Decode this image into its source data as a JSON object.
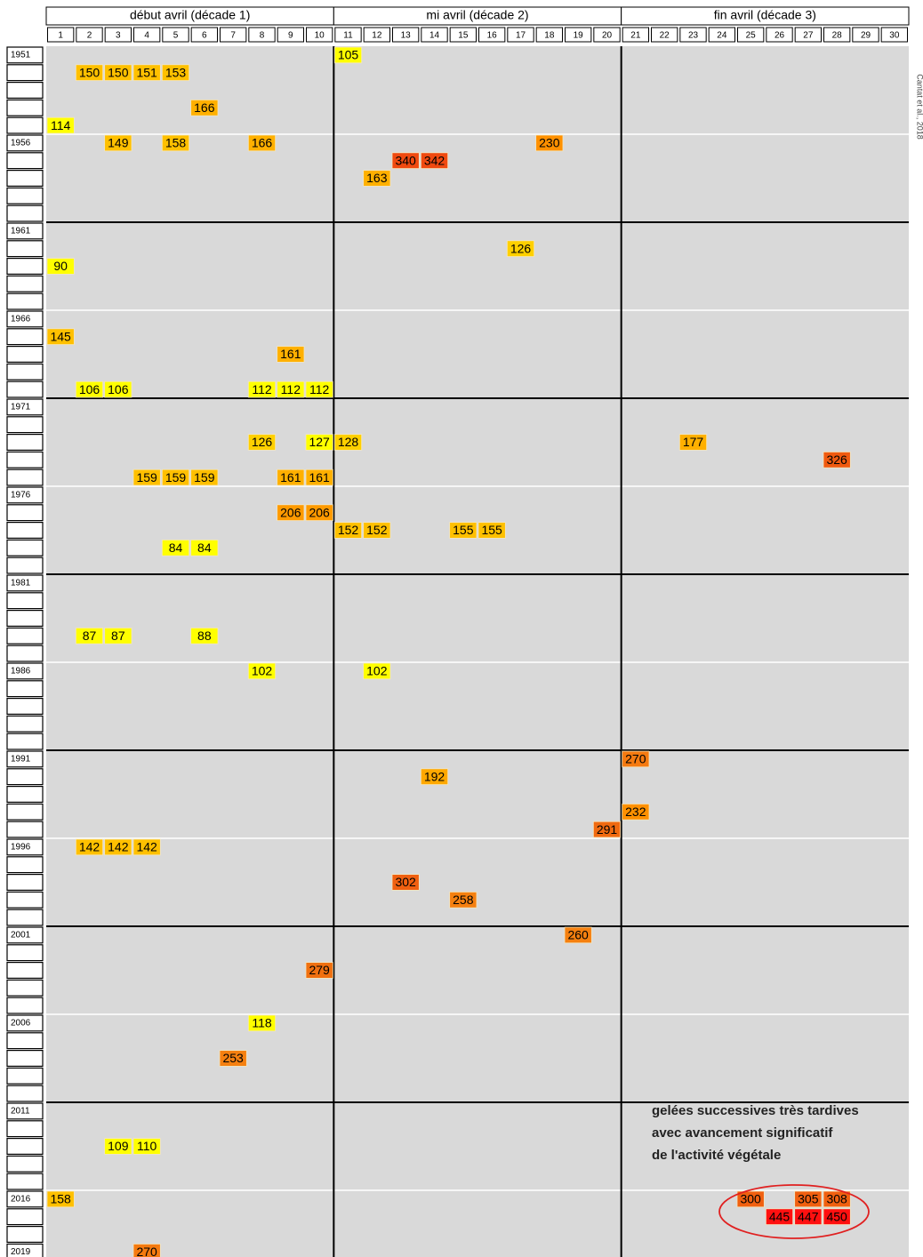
{
  "chart_data": {
    "type": "grid",
    "decades": [
      "début avril (décade 1)",
      "mi avril (décade 2)",
      "fin avril (décade 3)"
    ],
    "days": [
      1,
      2,
      3,
      4,
      5,
      6,
      7,
      8,
      9,
      10,
      11,
      12,
      13,
      14,
      15,
      16,
      17,
      18,
      19,
      20,
      21,
      22,
      23,
      24,
      25,
      26,
      27,
      28,
      29,
      30
    ],
    "year_labels": [
      "1951",
      "1956",
      "1961",
      "1966",
      "1971",
      "1976",
      "1981",
      "1986",
      "1991",
      "1996",
      "2001",
      "2006",
      "2011",
      "2016",
      "2019"
    ],
    "annotation": [
      "gelées successives très tardives",
      "avec avancement significatif",
      "de l'activité végétale"
    ],
    "credit": "Cantat et al., 2018",
    "cells": [
      {
        "year": 1951,
        "day": 11,
        "value": 105,
        "color": "#ffff00"
      },
      {
        "year": 1952,
        "day": 2,
        "value": 150,
        "color": "#ffc000"
      },
      {
        "year": 1952,
        "day": 3,
        "value": 150,
        "color": "#ffc000"
      },
      {
        "year": 1952,
        "day": 4,
        "value": 151,
        "color": "#ffc000"
      },
      {
        "year": 1952,
        "day": 5,
        "value": 153,
        "color": "#ffc000"
      },
      {
        "year": 1954,
        "day": 6,
        "value": 166,
        "color": "#ffb000"
      },
      {
        "year": 1955,
        "day": 1,
        "value": 114,
        "color": "#ffff00"
      },
      {
        "year": 1956,
        "day": 3,
        "value": 149,
        "color": "#ffc000"
      },
      {
        "year": 1956,
        "day": 5,
        "value": 158,
        "color": "#ffc000"
      },
      {
        "year": 1956,
        "day": 8,
        "value": 166,
        "color": "#ffb000"
      },
      {
        "year": 1956,
        "day": 18,
        "value": 230,
        "color": "#ff9000"
      },
      {
        "year": 1957,
        "day": 13,
        "value": 340,
        "color": "#f04a10"
      },
      {
        "year": 1957,
        "day": 14,
        "value": 342,
        "color": "#f04a10"
      },
      {
        "year": 1958,
        "day": 12,
        "value": 163,
        "color": "#ffb000"
      },
      {
        "year": 1962,
        "day": 17,
        "value": 126,
        "color": "#ffd000"
      },
      {
        "year": 1963,
        "day": 1,
        "value": 90,
        "color": "#ffff00"
      },
      {
        "year": 1967,
        "day": 1,
        "value": 145,
        "color": "#ffc000"
      },
      {
        "year": 1968,
        "day": 9,
        "value": 161,
        "color": "#ffb000"
      },
      {
        "year": 1970,
        "day": 2,
        "value": 106,
        "color": "#ffff00"
      },
      {
        "year": 1970,
        "day": 3,
        "value": 106,
        "color": "#ffff00"
      },
      {
        "year": 1970,
        "day": 8,
        "value": 112,
        "color": "#ffff00"
      },
      {
        "year": 1970,
        "day": 9,
        "value": 112,
        "color": "#ffff00"
      },
      {
        "year": 1970,
        "day": 10,
        "value": 112,
        "color": "#ffff00"
      },
      {
        "year": 1973,
        "day": 8,
        "value": 126,
        "color": "#ffd000"
      },
      {
        "year": 1973,
        "day": 10,
        "value": 127,
        "color": "#ffff00"
      },
      {
        "year": 1973,
        "day": 11,
        "value": 128,
        "color": "#ffd000"
      },
      {
        "year": 1973,
        "day": 23,
        "value": 177,
        "color": "#ffb000"
      },
      {
        "year": 1974,
        "day": 28,
        "value": 326,
        "color": "#f05a10"
      },
      {
        "year": 1975,
        "day": 4,
        "value": 159,
        "color": "#ffc000"
      },
      {
        "year": 1975,
        "day": 5,
        "value": 159,
        "color": "#ffc000"
      },
      {
        "year": 1975,
        "day": 6,
        "value": 159,
        "color": "#ffc000"
      },
      {
        "year": 1975,
        "day": 9,
        "value": 161,
        "color": "#ffb000"
      },
      {
        "year": 1975,
        "day": 10,
        "value": 161,
        "color": "#ffb000"
      },
      {
        "year": 1977,
        "day": 9,
        "value": 206,
        "color": "#ff9a00"
      },
      {
        "year": 1977,
        "day": 10,
        "value": 206,
        "color": "#ff9a00"
      },
      {
        "year": 1978,
        "day": 11,
        "value": 152,
        "color": "#ffc000"
      },
      {
        "year": 1978,
        "day": 12,
        "value": 152,
        "color": "#ffc000"
      },
      {
        "year": 1978,
        "day": 15,
        "value": 155,
        "color": "#ffc000"
      },
      {
        "year": 1978,
        "day": 16,
        "value": 155,
        "color": "#ffc000"
      },
      {
        "year": 1979,
        "day": 5,
        "value": 84,
        "color": "#ffff00"
      },
      {
        "year": 1979,
        "day": 6,
        "value": 84,
        "color": "#ffff00"
      },
      {
        "year": 1984,
        "day": 2,
        "value": 87,
        "color": "#ffff00"
      },
      {
        "year": 1984,
        "day": 3,
        "value": 87,
        "color": "#ffff00"
      },
      {
        "year": 1984,
        "day": 6,
        "value": 88,
        "color": "#ffff00"
      },
      {
        "year": 1986,
        "day": 8,
        "value": 102,
        "color": "#ffff00"
      },
      {
        "year": 1986,
        "day": 12,
        "value": 102,
        "color": "#ffff00"
      },
      {
        "year": 1991,
        "day": 21,
        "value": 270,
        "color": "#f57a10"
      },
      {
        "year": 1992,
        "day": 14,
        "value": 192,
        "color": "#ffa800"
      },
      {
        "year": 1994,
        "day": 21,
        "value": 232,
        "color": "#ff9000"
      },
      {
        "year": 1995,
        "day": 20,
        "value": 291,
        "color": "#f06a10"
      },
      {
        "year": 1996,
        "day": 2,
        "value": 142,
        "color": "#ffc000"
      },
      {
        "year": 1996,
        "day": 3,
        "value": 142,
        "color": "#ffc000"
      },
      {
        "year": 1996,
        "day": 4,
        "value": 142,
        "color": "#ffc000"
      },
      {
        "year": 1998,
        "day": 13,
        "value": 302,
        "color": "#f06010"
      },
      {
        "year": 1999,
        "day": 15,
        "value": 258,
        "color": "#f58010"
      },
      {
        "year": 2001,
        "day": 19,
        "value": 260,
        "color": "#f58010"
      },
      {
        "year": 2003,
        "day": 10,
        "value": 279,
        "color": "#f07010"
      },
      {
        "year": 2006,
        "day": 8,
        "value": 118,
        "color": "#ffff00"
      },
      {
        "year": 2008,
        "day": 7,
        "value": 253,
        "color": "#f58010"
      },
      {
        "year": 2013,
        "day": 3,
        "value": 109,
        "color": "#ffff00"
      },
      {
        "year": 2013,
        "day": 4,
        "value": 110,
        "color": "#ffff00"
      },
      {
        "year": 2016,
        "day": 1,
        "value": 158,
        "color": "#ffc000"
      },
      {
        "year": 2016,
        "day": 25,
        "value": 300,
        "color": "#f06010"
      },
      {
        "year": 2016,
        "day": 27,
        "value": 305,
        "color": "#f06010"
      },
      {
        "year": 2016,
        "day": 28,
        "value": 308,
        "color": "#f06010"
      },
      {
        "year": 2017,
        "day": 26,
        "value": 445,
        "color": "#ff1010"
      },
      {
        "year": 2017,
        "day": 27,
        "value": 447,
        "color": "#ff1010"
      },
      {
        "year": 2017,
        "day": 28,
        "value": 450,
        "color": "#ff1010"
      },
      {
        "year": 2019,
        "day": 4,
        "value": 270,
        "color": "#f57a10"
      }
    ]
  }
}
